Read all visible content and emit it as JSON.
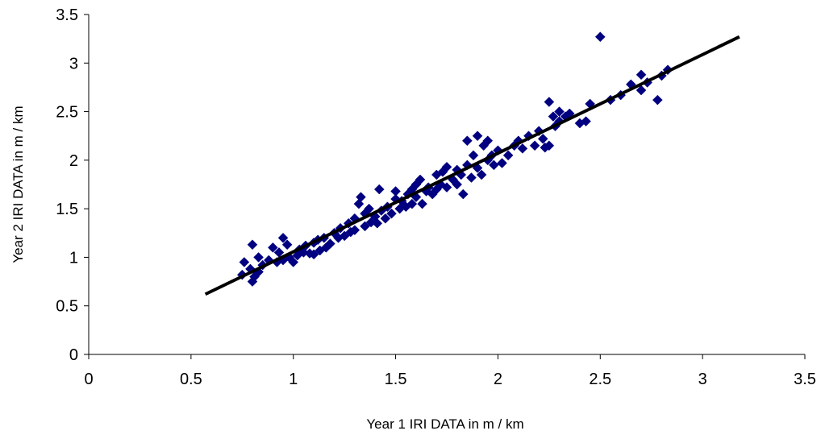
{
  "chart_data": {
    "type": "scatter",
    "title": "",
    "xlabel": "Year 1  IRI  DATA  in  m / km",
    "ylabel": "Year 2  IRI  DATA  in  m / km",
    "xlim": [
      0,
      3.5
    ],
    "ylim": [
      0,
      3.5
    ],
    "xticks": [
      "0",
      "0.5",
      "1",
      "1.5",
      "2",
      "2.5",
      "3",
      "3.5"
    ],
    "yticks": [
      "0",
      "0.5",
      "1",
      "1.5",
      "2",
      "2.5",
      "3",
      "3.5"
    ],
    "grid": false,
    "legend": "none",
    "series": [
      {
        "marker": "diamond",
        "color": "#000080",
        "points": [
          [
            0.75,
            0.82
          ],
          [
            0.76,
            0.95
          ],
          [
            0.79,
            0.88
          ],
          [
            0.8,
            0.75
          ],
          [
            0.8,
            1.13
          ],
          [
            0.81,
            0.8
          ],
          [
            0.83,
            0.85
          ],
          [
            0.83,
            1.0
          ],
          [
            0.85,
            0.92
          ],
          [
            0.88,
            0.97
          ],
          [
            0.9,
            1.1
          ],
          [
            0.92,
            0.95
          ],
          [
            0.93,
            1.05
          ],
          [
            0.95,
            1.2
          ],
          [
            0.95,
            0.97
          ],
          [
            0.97,
            1.13
          ],
          [
            0.98,
            1.0
          ],
          [
            1.0,
            0.95
          ],
          [
            1.02,
            1.02
          ],
          [
            1.03,
            1.08
          ],
          [
            1.05,
            1.05
          ],
          [
            1.06,
            1.12
          ],
          [
            1.08,
            1.04
          ],
          [
            1.1,
            1.15
          ],
          [
            1.1,
            1.03
          ],
          [
            1.12,
            1.18
          ],
          [
            1.13,
            1.07
          ],
          [
            1.15,
            1.2
          ],
          [
            1.16,
            1.1
          ],
          [
            1.18,
            1.14
          ],
          [
            1.2,
            1.25
          ],
          [
            1.22,
            1.2
          ],
          [
            1.23,
            1.3
          ],
          [
            1.25,
            1.22
          ],
          [
            1.27,
            1.35
          ],
          [
            1.28,
            1.26
          ],
          [
            1.3,
            1.4
          ],
          [
            1.3,
            1.28
          ],
          [
            1.32,
            1.55
          ],
          [
            1.33,
            1.62
          ],
          [
            1.35,
            1.32
          ],
          [
            1.35,
            1.45
          ],
          [
            1.37,
            1.5
          ],
          [
            1.38,
            1.36
          ],
          [
            1.4,
            1.42
          ],
          [
            1.41,
            1.35
          ],
          [
            1.42,
            1.7
          ],
          [
            1.43,
            1.48
          ],
          [
            1.45,
            1.4
          ],
          [
            1.46,
            1.52
          ],
          [
            1.48,
            1.45
          ],
          [
            1.5,
            1.6
          ],
          [
            1.5,
            1.68
          ],
          [
            1.52,
            1.5
          ],
          [
            1.53,
            1.58
          ],
          [
            1.55,
            1.52
          ],
          [
            1.56,
            1.65
          ],
          [
            1.58,
            1.7
          ],
          [
            1.58,
            1.55
          ],
          [
            1.6,
            1.75
          ],
          [
            1.6,
            1.62
          ],
          [
            1.62,
            1.8
          ],
          [
            1.63,
            1.55
          ],
          [
            1.65,
            1.68
          ],
          [
            1.66,
            1.72
          ],
          [
            1.68,
            1.65
          ],
          [
            1.7,
            1.85
          ],
          [
            1.7,
            1.7
          ],
          [
            1.72,
            1.75
          ],
          [
            1.73,
            1.88
          ],
          [
            1.75,
            1.72
          ],
          [
            1.75,
            1.93
          ],
          [
            1.78,
            1.8
          ],
          [
            1.8,
            1.9
          ],
          [
            1.8,
            1.75
          ],
          [
            1.82,
            1.85
          ],
          [
            1.83,
            1.65
          ],
          [
            1.85,
            1.95
          ],
          [
            1.85,
            2.2
          ],
          [
            1.87,
            1.82
          ],
          [
            1.88,
            2.05
          ],
          [
            1.9,
            1.92
          ],
          [
            1.9,
            2.25
          ],
          [
            1.92,
            1.85
          ],
          [
            1.93,
            2.15
          ],
          [
            1.95,
            2.0
          ],
          [
            1.95,
            2.2
          ],
          [
            1.97,
            2.05
          ],
          [
            1.98,
            1.95
          ],
          [
            2.0,
            2.1
          ],
          [
            2.02,
            1.97
          ],
          [
            2.05,
            2.05
          ],
          [
            2.08,
            2.15
          ],
          [
            2.1,
            2.2
          ],
          [
            2.12,
            2.12
          ],
          [
            2.15,
            2.25
          ],
          [
            2.18,
            2.15
          ],
          [
            2.2,
            2.3
          ],
          [
            2.22,
            2.22
          ],
          [
            2.23,
            2.13
          ],
          [
            2.25,
            2.6
          ],
          [
            2.25,
            2.15
          ],
          [
            2.27,
            2.45
          ],
          [
            2.28,
            2.35
          ],
          [
            2.3,
            2.5
          ],
          [
            2.3,
            2.4
          ],
          [
            2.33,
            2.45
          ],
          [
            2.35,
            2.48
          ],
          [
            2.4,
            2.38
          ],
          [
            2.43,
            2.4
          ],
          [
            2.45,
            2.58
          ],
          [
            2.5,
            3.27
          ],
          [
            2.55,
            2.62
          ],
          [
            2.6,
            2.67
          ],
          [
            2.65,
            2.78
          ],
          [
            2.7,
            2.88
          ],
          [
            2.7,
            2.72
          ],
          [
            2.73,
            2.8
          ],
          [
            2.78,
            2.62
          ],
          [
            2.8,
            2.87
          ],
          [
            2.83,
            2.93
          ]
        ]
      }
    ],
    "trendline": {
      "type": "line",
      "color": "#000000",
      "points": [
        [
          0.57,
          0.62
        ],
        [
          3.18,
          3.27
        ]
      ]
    }
  }
}
